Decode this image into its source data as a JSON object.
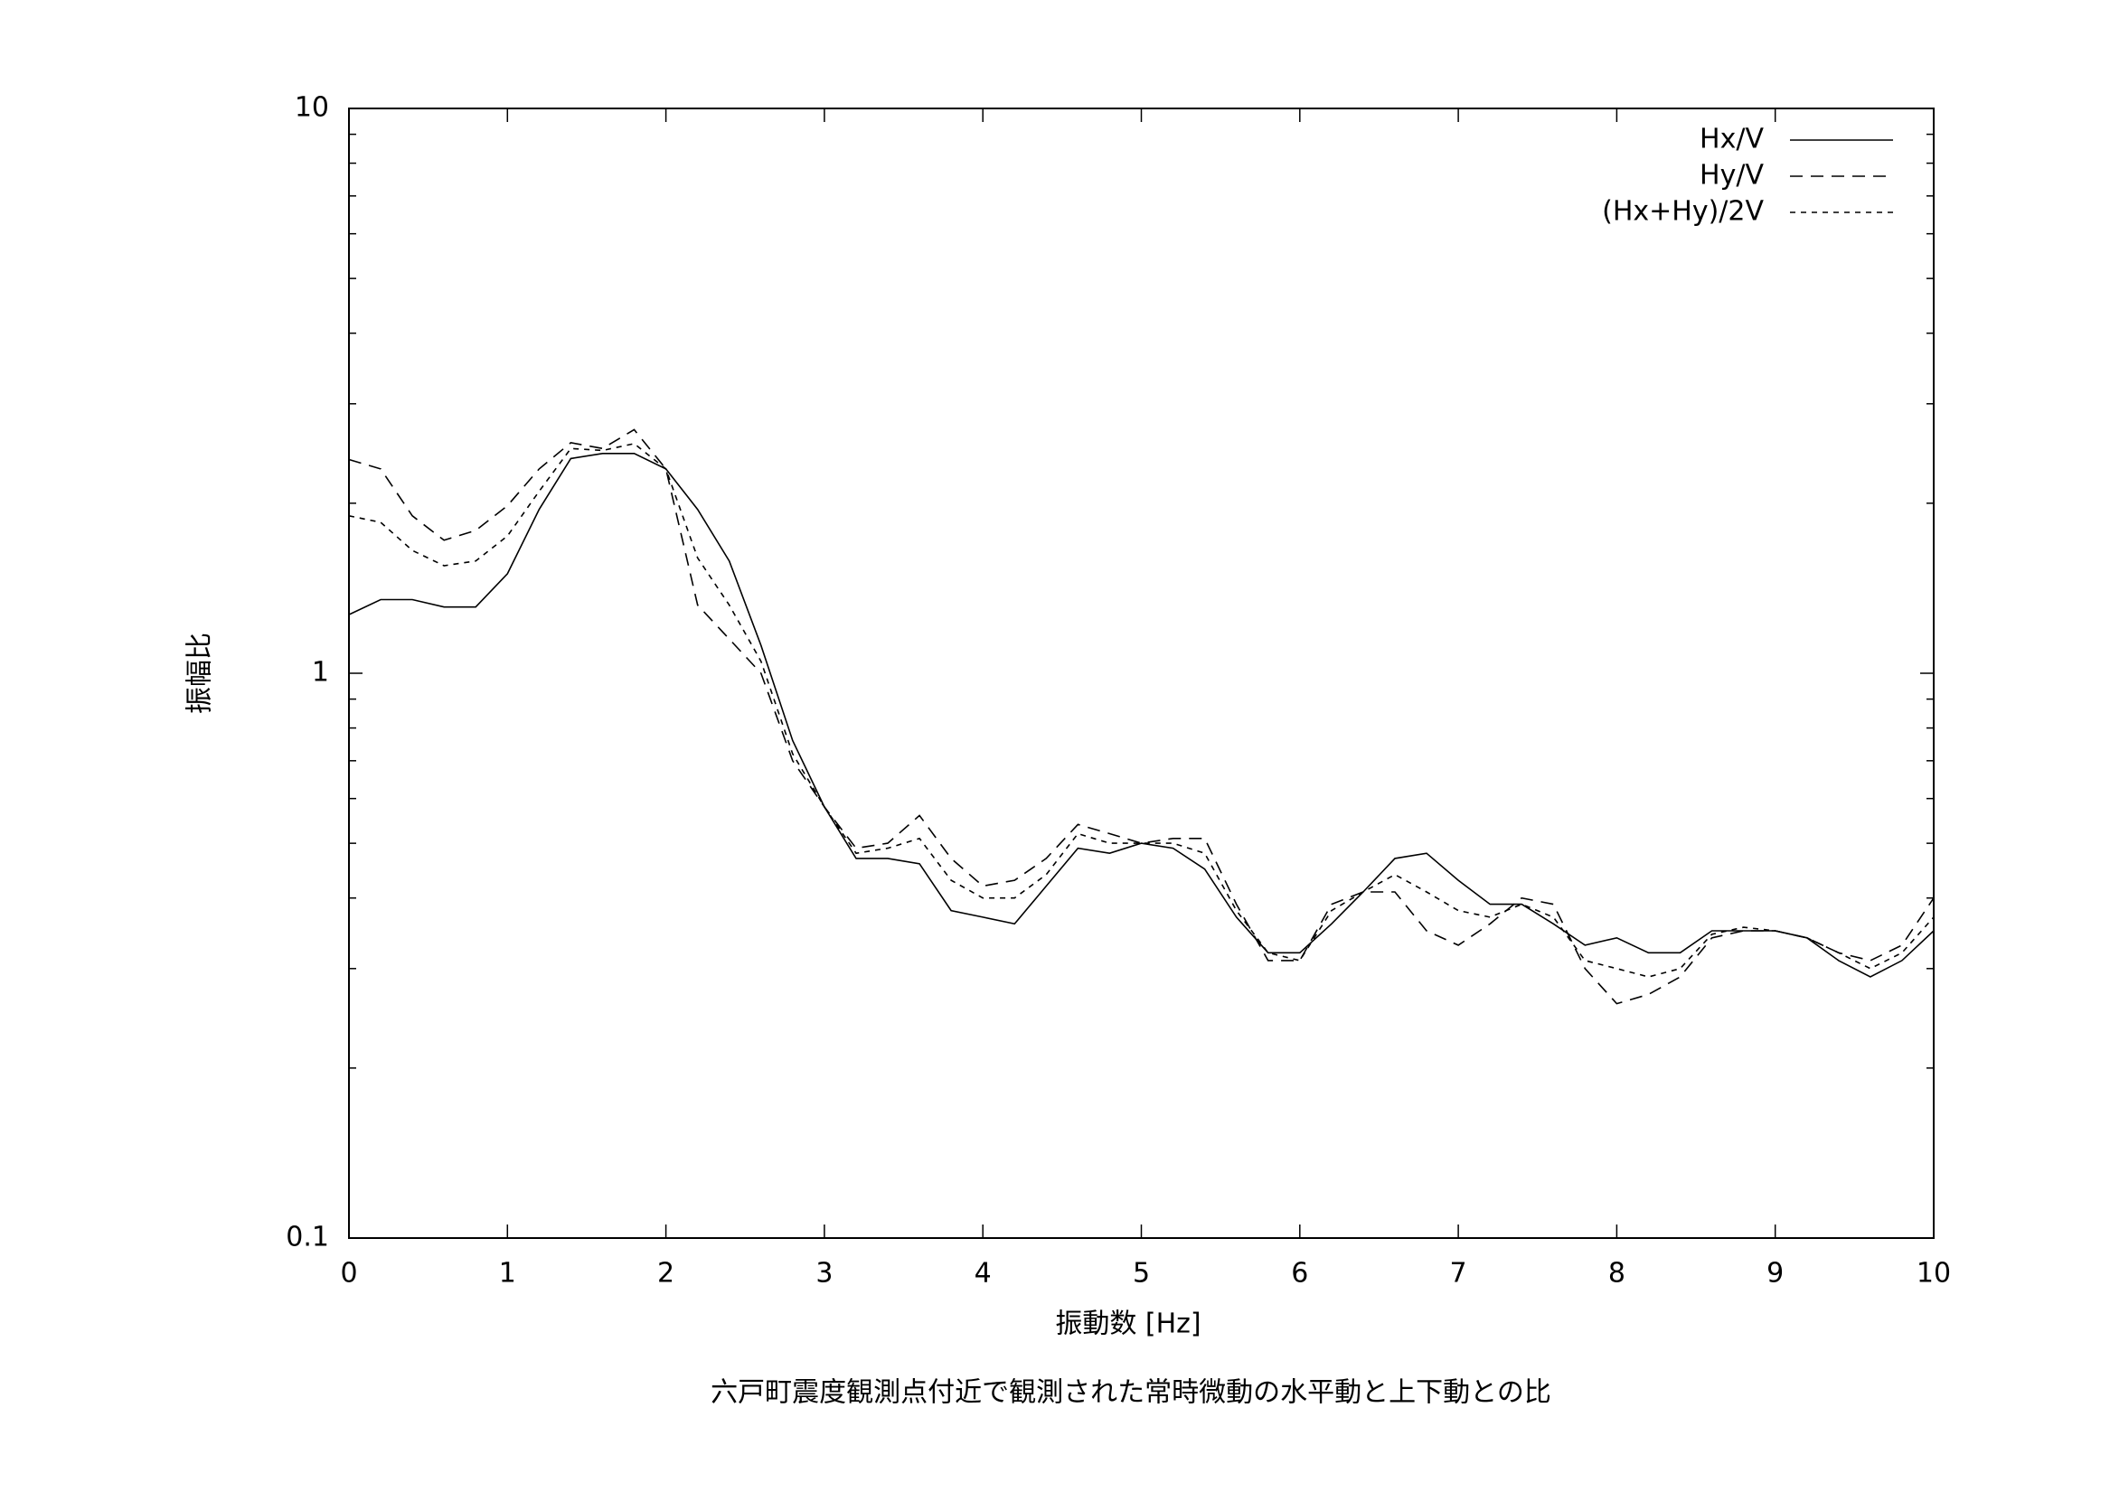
{
  "chart_data": {
    "type": "line",
    "xlabel": "振動数 [Hz]",
    "ylabel": "振幅比",
    "caption": "六戸町震度観測点付近で観測された常時微動の水平動と上下動との比",
    "x": [
      0,
      0.2,
      0.4,
      0.6,
      0.8,
      1.0,
      1.2,
      1.4,
      1.6,
      1.8,
      2.0,
      2.2,
      2.4,
      2.6,
      2.8,
      3.0,
      3.2,
      3.4,
      3.6,
      3.8,
      4.0,
      4.2,
      4.4,
      4.6,
      4.8,
      5.0,
      5.2,
      5.4,
      5.6,
      5.8,
      6.0,
      6.2,
      6.4,
      6.6,
      6.8,
      7.0,
      7.2,
      7.4,
      7.6,
      7.8,
      8.0,
      8.2,
      8.4,
      8.6,
      8.8,
      9.0,
      9.2,
      9.4,
      9.6,
      9.8,
      10.0
    ],
    "series": [
      {
        "name": "Hx/V",
        "color": "#000000",
        "dash": "none",
        "values": [
          1.27,
          1.35,
          1.35,
          1.31,
          1.31,
          1.5,
          1.95,
          2.4,
          2.45,
          2.45,
          2.3,
          1.95,
          1.58,
          1.12,
          0.76,
          0.58,
          0.47,
          0.47,
          0.46,
          0.38,
          0.37,
          0.36,
          0.42,
          0.49,
          0.48,
          0.5,
          0.49,
          0.45,
          0.37,
          0.32,
          0.32,
          0.36,
          0.41,
          0.47,
          0.48,
          0.43,
          0.39,
          0.39,
          0.36,
          0.33,
          0.34,
          0.32,
          0.32,
          0.35,
          0.35,
          0.35,
          0.34,
          0.31,
          0.29,
          0.31,
          0.35
        ]
      },
      {
        "name": "Hy/V",
        "color": "#000000",
        "dash": "14,9",
        "values": [
          2.39,
          2.3,
          1.9,
          1.72,
          1.79,
          1.98,
          2.3,
          2.56,
          2.5,
          2.7,
          2.3,
          1.32,
          1.15,
          1.0,
          0.7,
          0.58,
          0.49,
          0.5,
          0.56,
          0.47,
          0.42,
          0.43,
          0.47,
          0.54,
          0.52,
          0.5,
          0.51,
          0.51,
          0.39,
          0.31,
          0.31,
          0.39,
          0.41,
          0.41,
          0.35,
          0.33,
          0.36,
          0.4,
          0.39,
          0.3,
          0.26,
          0.27,
          0.29,
          0.34,
          0.35,
          0.35,
          0.34,
          0.32,
          0.31,
          0.33,
          0.4
        ]
      },
      {
        "name": "(Hx+Hy)/2V",
        "color": "#000000",
        "dash": "6,6",
        "values": [
          1.9,
          1.85,
          1.65,
          1.55,
          1.58,
          1.75,
          2.1,
          2.5,
          2.48,
          2.55,
          2.3,
          1.6,
          1.32,
          1.05,
          0.72,
          0.58,
          0.48,
          0.49,
          0.51,
          0.43,
          0.4,
          0.4,
          0.44,
          0.52,
          0.5,
          0.5,
          0.5,
          0.48,
          0.38,
          0.32,
          0.31,
          0.38,
          0.41,
          0.44,
          0.41,
          0.38,
          0.37,
          0.39,
          0.37,
          0.31,
          0.3,
          0.29,
          0.3,
          0.345,
          0.355,
          0.35,
          0.34,
          0.32,
          0.3,
          0.32,
          0.37
        ]
      }
    ],
    "xlim": [
      0,
      10
    ],
    "xticks": [
      0,
      1,
      2,
      3,
      4,
      5,
      6,
      7,
      8,
      9,
      10
    ],
    "ylim": [
      0.1,
      10
    ],
    "yticks": [
      0.1,
      1,
      10
    ],
    "ylog": true,
    "legend": "top-right"
  }
}
